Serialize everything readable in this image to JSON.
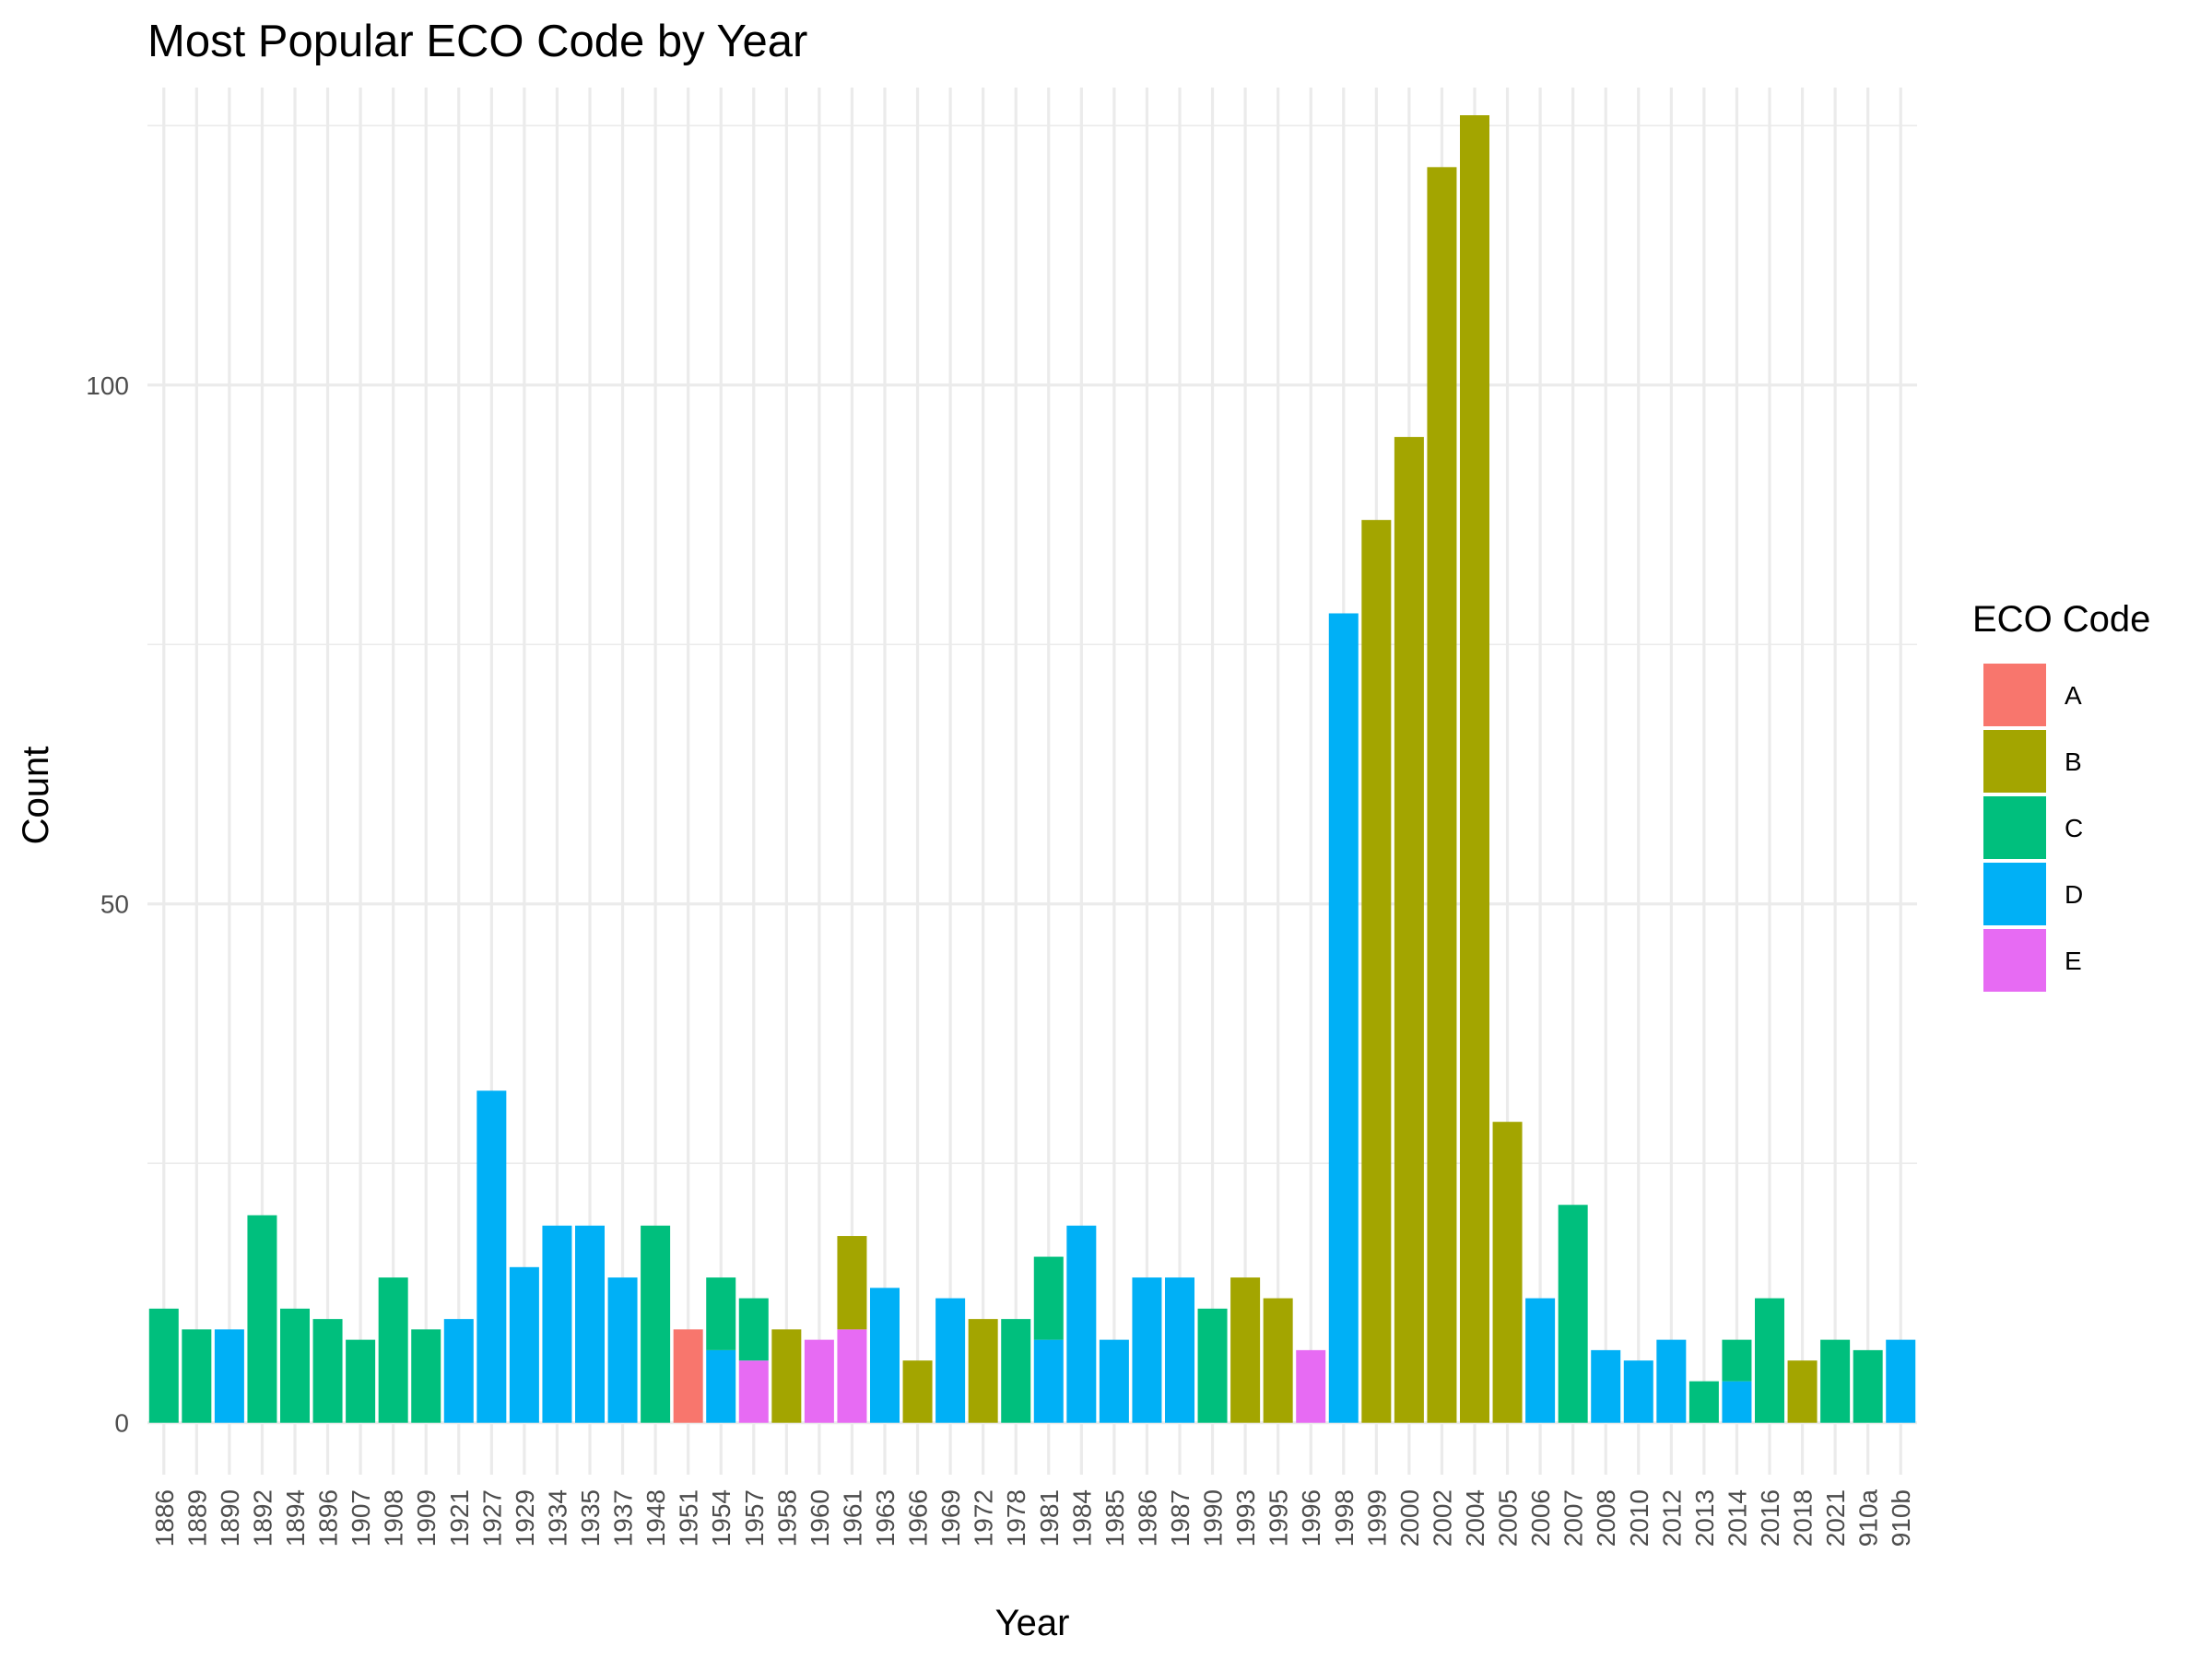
{
  "chart_data": {
    "type": "bar",
    "stacked": true,
    "title": "Most Popular ECO Code by Year",
    "xlabel": "Year",
    "ylabel": "Count",
    "ylim": [
      -5,
      130
    ],
    "yticks": [
      0,
      50,
      100
    ],
    "grid": true,
    "legend": {
      "title": "ECO Code",
      "position": "right"
    },
    "colors": {
      "A": "#F8766D",
      "B": "#A3A500",
      "C": "#00BF7D",
      "D": "#00B0F6",
      "E": "#E76BF3"
    },
    "categories": [
      "1886",
      "1889",
      "1890",
      "1892",
      "1894",
      "1896",
      "1907",
      "1908",
      "1909",
      "1921",
      "1927",
      "1929",
      "1934",
      "1935",
      "1937",
      "1948",
      "1951",
      "1954",
      "1957",
      "1958",
      "1960",
      "1961",
      "1963",
      "1966",
      "1969",
      "1972",
      "1978",
      "1981",
      "1984",
      "1985",
      "1986",
      "1987",
      "1990",
      "1993",
      "1995",
      "1996",
      "1998",
      "1999",
      "2000",
      "2002",
      "2004",
      "2005",
      "2006",
      "2007",
      "2008",
      "2010",
      "2012",
      "2013",
      "2014",
      "2016",
      "2018",
      "2021",
      "910a",
      "910b"
    ],
    "series": [
      {
        "name": "A",
        "values": [
          0,
          0,
          0,
          0,
          0,
          0,
          0,
          0,
          0,
          0,
          0,
          0,
          0,
          0,
          0,
          0,
          9,
          0,
          0,
          0,
          0,
          0,
          0,
          0,
          0,
          0,
          0,
          0,
          0,
          0,
          0,
          0,
          0,
          0,
          0,
          0,
          0,
          0,
          0,
          0,
          0,
          0,
          0,
          0,
          0,
          0,
          0,
          0,
          0,
          0,
          0,
          0,
          0,
          0
        ]
      },
      {
        "name": "B",
        "values": [
          0,
          0,
          0,
          0,
          0,
          0,
          0,
          0,
          0,
          0,
          0,
          0,
          0,
          0,
          0,
          0,
          0,
          0,
          0,
          9,
          0,
          9,
          0,
          6,
          0,
          10,
          0,
          0,
          0,
          0,
          0,
          0,
          0,
          14,
          12,
          0,
          0,
          87,
          95,
          121,
          126,
          29,
          0,
          0,
          0,
          0,
          0,
          0,
          0,
          0,
          6,
          0,
          0,
          0
        ]
      },
      {
        "name": "C",
        "values": [
          11,
          9,
          0,
          20,
          11,
          10,
          8,
          14,
          9,
          0,
          0,
          0,
          0,
          0,
          0,
          19,
          0,
          7,
          6,
          0,
          0,
          0,
          0,
          0,
          0,
          0,
          10,
          8,
          0,
          0,
          0,
          0,
          11,
          0,
          0,
          0,
          0,
          0,
          0,
          0,
          0,
          0,
          0,
          21,
          0,
          0,
          0,
          4,
          4,
          12,
          0,
          8,
          7,
          0
        ]
      },
      {
        "name": "D",
        "values": [
          0,
          0,
          9,
          0,
          0,
          0,
          0,
          0,
          0,
          10,
          32,
          15,
          19,
          19,
          14,
          0,
          0,
          7,
          0,
          0,
          0,
          0,
          13,
          0,
          12,
          0,
          0,
          8,
          19,
          8,
          14,
          14,
          0,
          0,
          0,
          0,
          78,
          0,
          0,
          0,
          0,
          0,
          12,
          0,
          7,
          6,
          8,
          0,
          4,
          0,
          0,
          0,
          0,
          8
        ]
      },
      {
        "name": "E",
        "values": [
          0,
          0,
          0,
          0,
          0,
          0,
          0,
          0,
          0,
          0,
          0,
          0,
          0,
          0,
          0,
          0,
          0,
          0,
          6,
          0,
          8,
          9,
          0,
          0,
          0,
          0,
          0,
          0,
          0,
          0,
          0,
          0,
          0,
          0,
          0,
          7,
          0,
          0,
          0,
          0,
          0,
          0,
          0,
          0,
          0,
          0,
          0,
          0,
          0,
          0,
          0,
          0,
          0,
          0
        ]
      }
    ]
  }
}
